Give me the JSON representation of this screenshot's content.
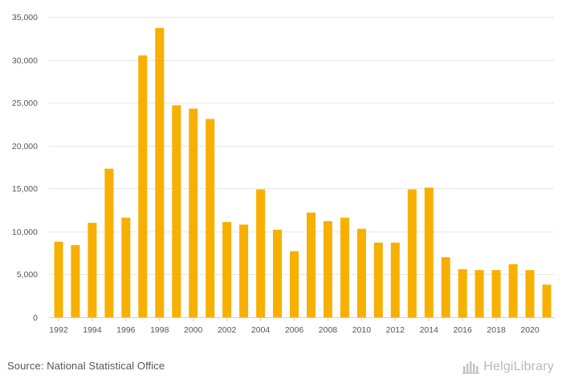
{
  "chart_data": {
    "type": "bar",
    "categories": [
      "1992",
      "1993",
      "1994",
      "1995",
      "1996",
      "1997",
      "1998",
      "1999",
      "2000",
      "2001",
      "2002",
      "2003",
      "2004",
      "2005",
      "2006",
      "2007",
      "2008",
      "2009",
      "2010",
      "2011",
      "2012",
      "2013",
      "2014",
      "2015",
      "2016",
      "2017",
      "2018",
      "2019",
      "2020",
      "2021"
    ],
    "values": [
      8800,
      8400,
      11000,
      17300,
      11600,
      30500,
      33700,
      24700,
      24300,
      23100,
      11100,
      10800,
      14900,
      10200,
      7700,
      12200,
      11200,
      11600,
      10300,
      8700,
      8700,
      14900,
      15100,
      7000,
      5600,
      5500,
      5500,
      6200,
      5500,
      3800
    ],
    "x_tick_labels": [
      "1992",
      "1994",
      "1996",
      "1998",
      "2000",
      "2002",
      "2004",
      "2006",
      "2008",
      "2010",
      "2012",
      "2014",
      "2016",
      "2018",
      "2020"
    ],
    "y_ticks": [
      0,
      5000,
      10000,
      15000,
      20000,
      25000,
      30000,
      35000
    ],
    "y_tick_labels": [
      "0",
      "5,000",
      "10,000",
      "15,000",
      "20,000",
      "25,000",
      "30,000",
      "35,000"
    ],
    "ylim": [
      0,
      35000
    ],
    "grid": true,
    "legend": "none",
    "bar_color": "#f7b000",
    "title": "",
    "xlabel": "",
    "ylabel": ""
  },
  "footer": {
    "source": "Source: National Statistical Office",
    "brand": "HelgiLibrary",
    "brand_icon": "helgi-logo-icon",
    "brand_color": "#b9b9b9"
  }
}
